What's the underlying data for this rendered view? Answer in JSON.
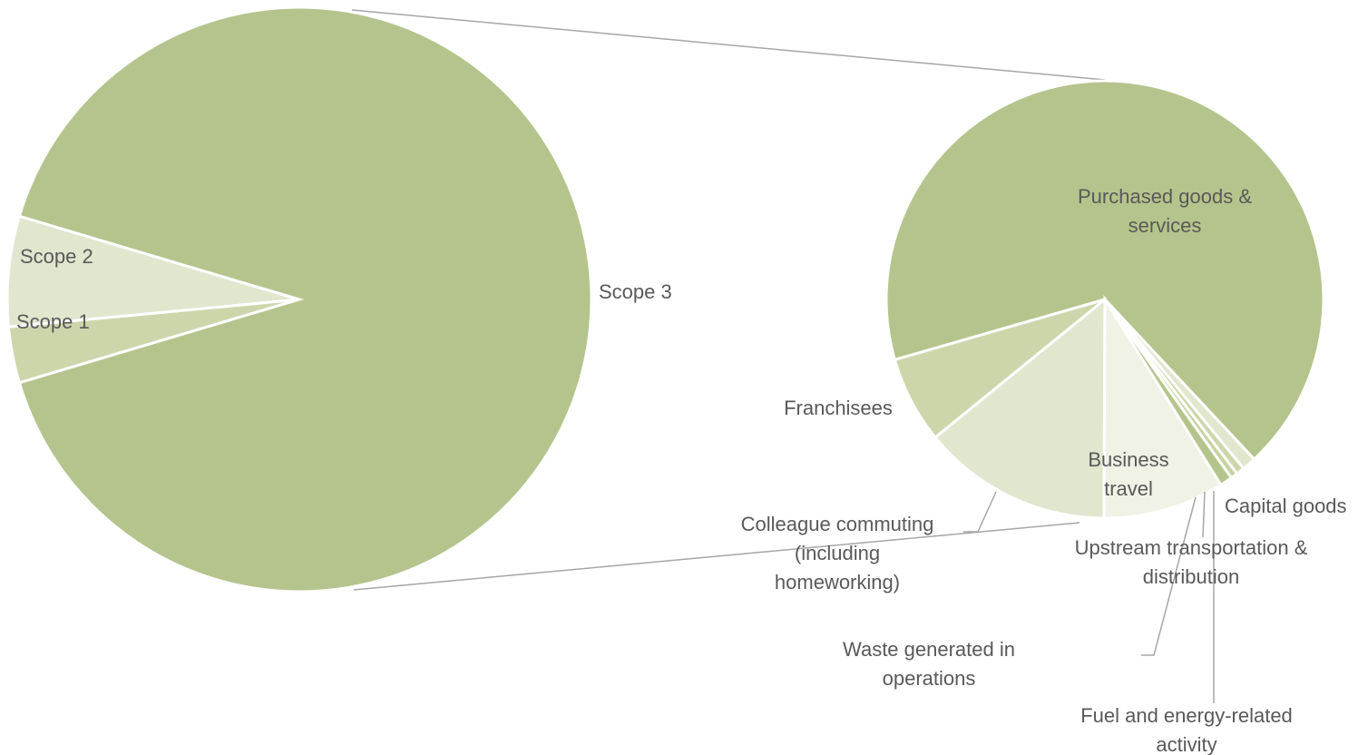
{
  "colors": {
    "background": "#ffffff",
    "text": "#595959",
    "connector": "#a6a6a6",
    "slice_border": "#ffffff",
    "shades": [
      "#b5c48c",
      "#cdd6ab",
      "#e1e6cf",
      "#eff2e4",
      "#c6d2a0"
    ]
  },
  "chart_data": [
    {
      "type": "pie",
      "role": "primary",
      "categories": [
        "Scope 1",
        "Scope 2",
        "Scope 3"
      ],
      "values": [
        6.1,
        3.1,
        90.8
      ],
      "labels": [
        "Scope 1",
        "Scope 2",
        "Scope 3"
      ]
    },
    {
      "type": "pie",
      "role": "breakdown-of-scope-3",
      "categories": [
        "Purchased goods & services",
        "Franchisees",
        "Colleague commuting (including homeworking)",
        "Business travel",
        "Waste generated in operations",
        "Fuel and energy-related activity",
        "Upstream transportation & distribution",
        "Capital goods"
      ],
      "values": [
        66.2,
        6.3,
        13.8,
        8.8,
        0.9,
        0.5,
        0.6,
        1.0
      ],
      "labels": [
        [
          "Purchased goods &",
          "services"
        ],
        [
          "Franchisees"
        ],
        [
          "Colleague commuting",
          "(including",
          "homeworking)"
        ],
        [
          "Business",
          "travel"
        ],
        [
          "Waste generated in",
          "operations"
        ],
        [
          "Fuel and energy-related",
          "activity"
        ],
        [
          "Upstream transportation &",
          "distribution"
        ],
        [
          "Capital goods"
        ]
      ]
    }
  ]
}
